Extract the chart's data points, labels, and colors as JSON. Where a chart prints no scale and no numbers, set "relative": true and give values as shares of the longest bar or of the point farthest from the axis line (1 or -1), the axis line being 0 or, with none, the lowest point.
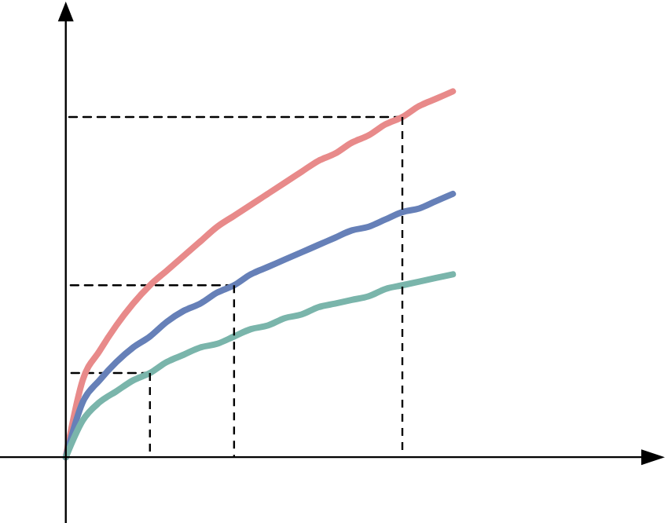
{
  "chart_data": {
    "type": "line",
    "relative": true,
    "categories": [
      null,
      null,
      null,
      null,
      null,
      null,
      null,
      null,
      null,
      null,
      null,
      null,
      null,
      null,
      null,
      null,
      null,
      null,
      null,
      null,
      null,
      null,
      null,
      null
    ],
    "series": [
      {
        "color": "#e88a8a",
        "values": [
          0,
          0.21,
          0.29,
          0.36,
          0.42,
          0.47,
          0.51,
          0.55,
          0.59,
          0.63,
          0.66,
          0.69,
          0.72,
          0.75,
          0.78,
          0.81,
          0.83,
          0.86,
          0.88,
          0.91,
          0.93,
          0.96,
          0.98,
          1
        ]
      },
      {
        "color": "#6680b8",
        "values": [
          0,
          0.15,
          0.21,
          0.26,
          0.3,
          0.33,
          0.37,
          0.4,
          0.42,
          0.45,
          0.47,
          0.5,
          0.52,
          0.54,
          0.56,
          0.58,
          0.6,
          0.62,
          0.63,
          0.65,
          0.67,
          0.68,
          0.7,
          0.72
        ]
      },
      {
        "color": "#7ab5ab",
        "values": [
          0,
          0.1,
          0.15,
          0.18,
          0.21,
          0.23,
          0.26,
          0.28,
          0.3,
          0.31,
          0.33,
          0.35,
          0.36,
          0.38,
          0.39,
          0.41,
          0.42,
          0.43,
          0.44,
          0.46,
          0.47,
          0.48,
          0.49,
          0.5
        ]
      },
      {
        "line_style": "dashed",
        "color": "#000000",
        "values": [
          0.23,
          0.23,
          0.23,
          0.23,
          0.23,
          0.23,
          null,
          null,
          null,
          null,
          null,
          null,
          null,
          null,
          null,
          null,
          null,
          null,
          null,
          null,
          null,
          null,
          null,
          null
        ]
      },
      {
        "line_style": "dashed",
        "color": "#000000",
        "values": [
          0.47,
          0.47,
          0.47,
          0.47,
          0.47,
          0.47,
          0.47,
          0.47,
          0.47,
          0.47,
          0.47,
          null,
          null,
          null,
          null,
          null,
          null,
          null,
          null,
          null,
          null,
          null,
          null,
          null
        ]
      },
      {
        "line_style": "dashed",
        "color": "#000000",
        "values": [
          0.93,
          0.93,
          0.93,
          0.93,
          0.93,
          0.93,
          0.93,
          0.93,
          0.93,
          0.93,
          0.93,
          0.93,
          0.93,
          0.93,
          0.93,
          0.93,
          0.93,
          0.93,
          0.93,
          0.93,
          0.93,
          null,
          null,
          null
        ]
      }
    ]
  }
}
